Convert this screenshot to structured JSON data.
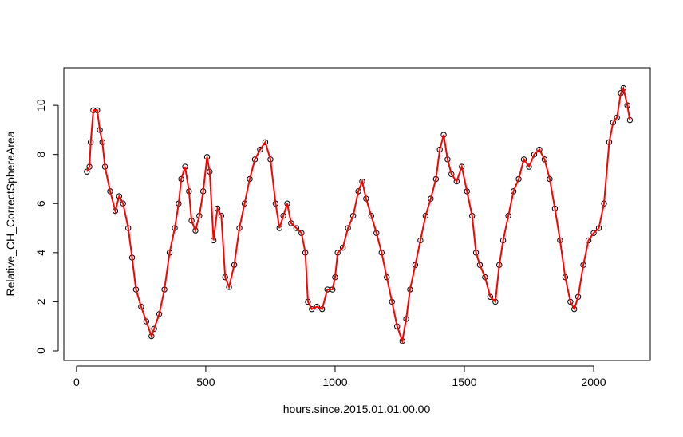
{
  "chart_data": {
    "type": "scatter",
    "x_label": "hours.since.2015.01.01.00.00",
    "y_label": "Relative_CH_CorrectSphereArea",
    "xlim": [
      -49,
      2219
    ],
    "ylim": [
      -0.39,
      11.53
    ],
    "xticks": [
      0,
      500,
      1000,
      1500,
      2000
    ],
    "yticks": [
      0,
      2,
      4,
      6,
      8,
      10
    ],
    "color": "#000000",
    "line_color": "#ff0000",
    "line": true,
    "x": [
      40,
      50,
      55,
      65,
      80,
      90,
      100,
      110,
      130,
      150,
      165,
      180,
      200,
      215,
      230,
      250,
      270,
      290,
      300,
      320,
      340,
      360,
      380,
      395,
      405,
      420,
      435,
      445,
      460,
      475,
      490,
      505,
      515,
      530,
      545,
      560,
      575,
      590,
      610,
      630,
      650,
      670,
      690,
      710,
      730,
      750,
      770,
      785,
      800,
      815,
      830,
      850,
      870,
      885,
      895,
      910,
      930,
      950,
      970,
      990,
      1000,
      1010,
      1030,
      1050,
      1070,
      1090,
      1105,
      1120,
      1140,
      1160,
      1180,
      1200,
      1220,
      1240,
      1260,
      1275,
      1290,
      1310,
      1330,
      1350,
      1370,
      1390,
      1405,
      1420,
      1435,
      1450,
      1470,
      1490,
      1510,
      1530,
      1545,
      1560,
      1580,
      1600,
      1620,
      1635,
      1650,
      1670,
      1690,
      1710,
      1730,
      1750,
      1770,
      1790,
      1810,
      1830,
      1850,
      1870,
      1890,
      1910,
      1925,
      1940,
      1960,
      1980,
      2000,
      2020,
      2040,
      2060,
      2075,
      2090,
      2105,
      2115,
      2130,
      2140
    ],
    "values": [
      7.3,
      7.5,
      8.5,
      9.8,
      9.8,
      9,
      8.5,
      7.5,
      6.5,
      5.7,
      6.3,
      6.0,
      5.0,
      3.8,
      2.5,
      1.8,
      1.2,
      0.6,
      0.9,
      1.5,
      2.5,
      4.0,
      5.0,
      6.0,
      7.0,
      7.5,
      6.5,
      5.3,
      4.9,
      5.5,
      6.5,
      7.9,
      7.3,
      4.5,
      5.8,
      5.5,
      3.0,
      2.6,
      3.5,
      5.0,
      6.0,
      7.0,
      7.8,
      8.2,
      8.5,
      7.8,
      6.0,
      5.0,
      5.5,
      6.0,
      5.2,
      5.0,
      4.8,
      4.0,
      2.0,
      1.7,
      1.8,
      1.7,
      2.5,
      2.5,
      3.0,
      4.0,
      4.2,
      5.0,
      5.5,
      6.5,
      6.9,
      6.2,
      5.5,
      4.8,
      4.0,
      3.0,
      2.0,
      1.0,
      0.4,
      1.3,
      2.5,
      3.5,
      4.5,
      5.5,
      6.2,
      7.0,
      8.2,
      8.8,
      7.8,
      7.2,
      6.9,
      7.5,
      6.5,
      5.5,
      4.0,
      3.5,
      3.0,
      2.2,
      2.0,
      3.5,
      4.5,
      5.5,
      6.5,
      7.0,
      7.8,
      7.5,
      8.0,
      8.2,
      7.8,
      7.0,
      5.8,
      4.5,
      3.0,
      2.0,
      1.7,
      2.2,
      3.5,
      4.5,
      4.8,
      5.0,
      6.0,
      8.5,
      9.3,
      9.5,
      10.5,
      10.7,
      10.0,
      9.4
    ]
  }
}
